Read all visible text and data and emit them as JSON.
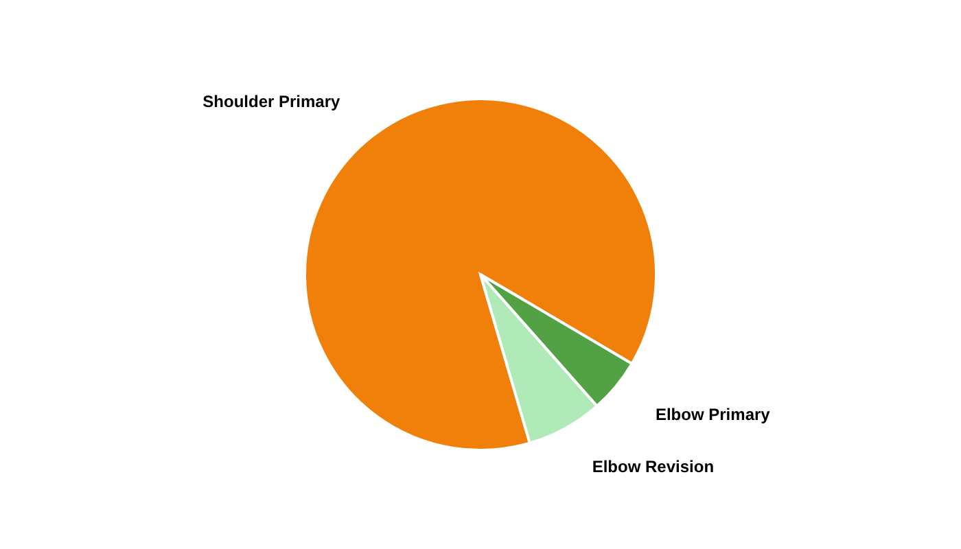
{
  "chart_data": {
    "type": "pie",
    "categories": [
      "Shoulder Primary",
      "Elbow Primary",
      "Elbow Revision"
    ],
    "values": [
      88,
      5,
      7
    ],
    "colors": [
      "#f0800a",
      "#52a245",
      "#afeab8"
    ]
  }
}
